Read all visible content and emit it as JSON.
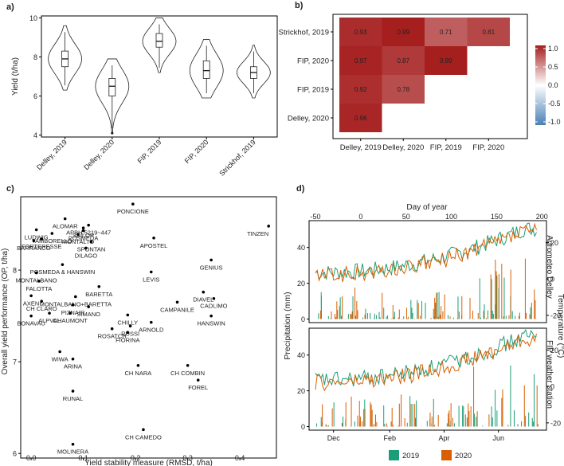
{
  "chart_data": [
    {
      "panel": "a)",
      "type": "violin",
      "ylabel": "Yield (t/ha)",
      "ylim": [
        3.9,
        10.1
      ],
      "yticks": [
        4,
        6,
        8,
        10
      ],
      "categories": [
        "Delley, 2019",
        "Delley, 2020",
        "FIP, 2019",
        "FIP, 2020",
        "Strickhof, 2019"
      ],
      "series": [
        {
          "category": "Delley, 2019",
          "min": 6.3,
          "q1": 7.5,
          "median": 7.9,
          "q3": 8.3,
          "max": 9.6
        },
        {
          "category": "Delley, 2020",
          "min": 4.1,
          "q1": 6.0,
          "median": 6.5,
          "q3": 6.9,
          "max": 7.9
        },
        {
          "category": "FIP, 2019",
          "min": 7.2,
          "q1": 8.5,
          "median": 8.8,
          "q3": 9.2,
          "max": 10.0
        },
        {
          "category": "FIP, 2020",
          "min": 5.9,
          "q1": 6.9,
          "median": 7.3,
          "q3": 7.8,
          "max": 8.9
        },
        {
          "category": "Strickhof, 2019",
          "min": 5.9,
          "q1": 6.9,
          "median": 7.2,
          "q3": 7.5,
          "max": 8.6
        }
      ]
    },
    {
      "panel": "b)",
      "type": "heatmap",
      "rows": [
        "Strickhof, 2019",
        "FIP, 2020",
        "FIP, 2019",
        "Delley, 2020"
      ],
      "cols": [
        "Delley, 2019",
        "Delley, 2020",
        "FIP, 2019",
        "FIP, 2020"
      ],
      "cells": [
        [
          "0.93",
          "0.99",
          "0.71",
          "0.81"
        ],
        [
          "0.97",
          "0.87",
          "0.99",
          null
        ],
        [
          "0.92",
          "0.78",
          null,
          null
        ],
        [
          "0.96",
          null,
          null,
          null
        ]
      ],
      "legend": {
        "ticks": [
          "1.0",
          "0.5",
          "0.0",
          "-0.5",
          "-1.0"
        ],
        "range": [
          -1,
          1
        ],
        "colors": [
          "#4a7fb5",
          "#ffffff",
          "#a51d1d"
        ]
      }
    },
    {
      "panel": "c)",
      "type": "scatter",
      "xlabel": "Yield stability measure (RMSD, t/ha)",
      "ylabel": "Overall yield performance (OP, t/ha)",
      "xlim": [
        -0.02,
        0.47
      ],
      "ylim": [
        5.95,
        8.8
      ],
      "xticks": [
        "0.0",
        "0.1",
        "0.2",
        "0.3",
        "0.4"
      ],
      "yticks": [
        "6",
        "7",
        "8"
      ],
      "points": [
        {
          "label": "PONCIONE",
          "x": 0.195,
          "y": 8.72
        },
        {
          "label": "ALOMAR",
          "x": 0.065,
          "y": 8.56
        },
        {
          "label": "APBH.5219~447",
          "x": 0.11,
          "y": 8.49
        },
        {
          "label": "TINZEN",
          "x": 0.455,
          "y": 8.48
        },
        {
          "label": "LUDWIG",
          "x": 0.01,
          "y": 8.44
        },
        {
          "label": "SAILOR",
          "x": 0.1,
          "y": 8.46
        },
        {
          "label": "POSMEDA",
          "x": 0.1,
          "y": 8.43
        },
        {
          "label": "TAMBORELLO",
          "x": 0.04,
          "y": 8.4
        },
        {
          "label": "MONTALTO",
          "x": 0.09,
          "y": 8.39
        },
        {
          "label": "APOSTEL",
          "x": 0.235,
          "y": 8.35
        },
        {
          "label": "FORTERESSE",
          "x": 0.02,
          "y": 8.34
        },
        {
          "label": "BARRANCO",
          "x": 0.005,
          "y": 8.32
        },
        {
          "label": "SPONTAN",
          "x": 0.115,
          "y": 8.31
        },
        {
          "label": "DILAGO",
          "x": 0.105,
          "y": 8.24
        },
        {
          "label": "GENIUS",
          "x": 0.345,
          "y": 8.11
        },
        {
          "label": "POSMEDA & HANSWIN",
          "x": 0.06,
          "y": 8.06
        },
        {
          "label": "LEVIS",
          "x": 0.23,
          "y": 7.98
        },
        {
          "label": "MONTALBANO",
          "x": 0.01,
          "y": 7.97
        },
        {
          "label": "FALOTTA",
          "x": 0.015,
          "y": 7.88
        },
        {
          "label": "BARETTA",
          "x": 0.13,
          "y": 7.82
        },
        {
          "label": "DIAVEL",
          "x": 0.33,
          "y": 7.76
        },
        {
          "label": "AXEN",
          "x": 0.0,
          "y": 7.72
        },
        {
          "label": "MONTALBANO+BARETTA",
          "x": 0.085,
          "y": 7.71
        },
        {
          "label": "CADLIMO",
          "x": 0.35,
          "y": 7.69
        },
        {
          "label": "CH CLARO",
          "x": 0.02,
          "y": 7.66
        },
        {
          "label": "CAMPANILE",
          "x": 0.28,
          "y": 7.65
        },
        {
          "label": "PIZNAIR",
          "x": 0.08,
          "y": 7.62
        },
        {
          "label": "SIMANO",
          "x": 0.11,
          "y": 7.6
        },
        {
          "label": "ALPVAL",
          "x": 0.035,
          "y": 7.53
        },
        {
          "label": "CHAUMONT",
          "x": 0.075,
          "y": 7.53
        },
        {
          "label": "BONAVAU",
          "x": 0.0,
          "y": 7.5
        },
        {
          "label": "CHILLY",
          "x": 0.185,
          "y": 7.51
        },
        {
          "label": "HANSWIN",
          "x": 0.345,
          "y": 7.5
        },
        {
          "label": "ARNOLD",
          "x": 0.23,
          "y": 7.43
        },
        {
          "label": "RUSSI",
          "x": 0.19,
          "y": 7.39
        },
        {
          "label": "ROSATCH",
          "x": 0.155,
          "y": 7.36
        },
        {
          "label": "FIORINA",
          "x": 0.185,
          "y": 7.32
        },
        {
          "label": "WIWA",
          "x": 0.055,
          "y": 7.11
        },
        {
          "label": "ARINA",
          "x": 0.08,
          "y": 7.03
        },
        {
          "label": "CH NARA",
          "x": 0.205,
          "y": 6.96
        },
        {
          "label": "CH COMBIN",
          "x": 0.3,
          "y": 6.96
        },
        {
          "label": "FOREL",
          "x": 0.32,
          "y": 6.8
        },
        {
          "label": "RUNAL",
          "x": 0.08,
          "y": 6.68
        },
        {
          "label": "CH CAMEDO",
          "x": 0.215,
          "y": 6.26
        },
        {
          "label": "MOLINERA",
          "x": 0.08,
          "y": 6.1
        }
      ]
    },
    {
      "panel": "d)",
      "type": "line",
      "top_xlabel": "Day of year",
      "top_xticks": [
        "-50",
        "0",
        "50",
        "100",
        "150",
        "200"
      ],
      "bottom_xticks": [
        "Dec",
        "Feb",
        "Apr",
        "Jun"
      ],
      "ylabel_left": "Precipitation (mm)",
      "ylabel_right": "Temperature (°C)",
      "yticks_left": [
        "0",
        "20",
        "40"
      ],
      "yticks_right": [
        "-20",
        "0",
        "20"
      ],
      "facets": [
        "Agrometeo Delley",
        "FIP weather station"
      ],
      "legend": [
        {
          "name": "2019",
          "color": "#1b9e77"
        },
        {
          "name": "2020",
          "color": "#d95f02"
        }
      ]
    }
  ]
}
